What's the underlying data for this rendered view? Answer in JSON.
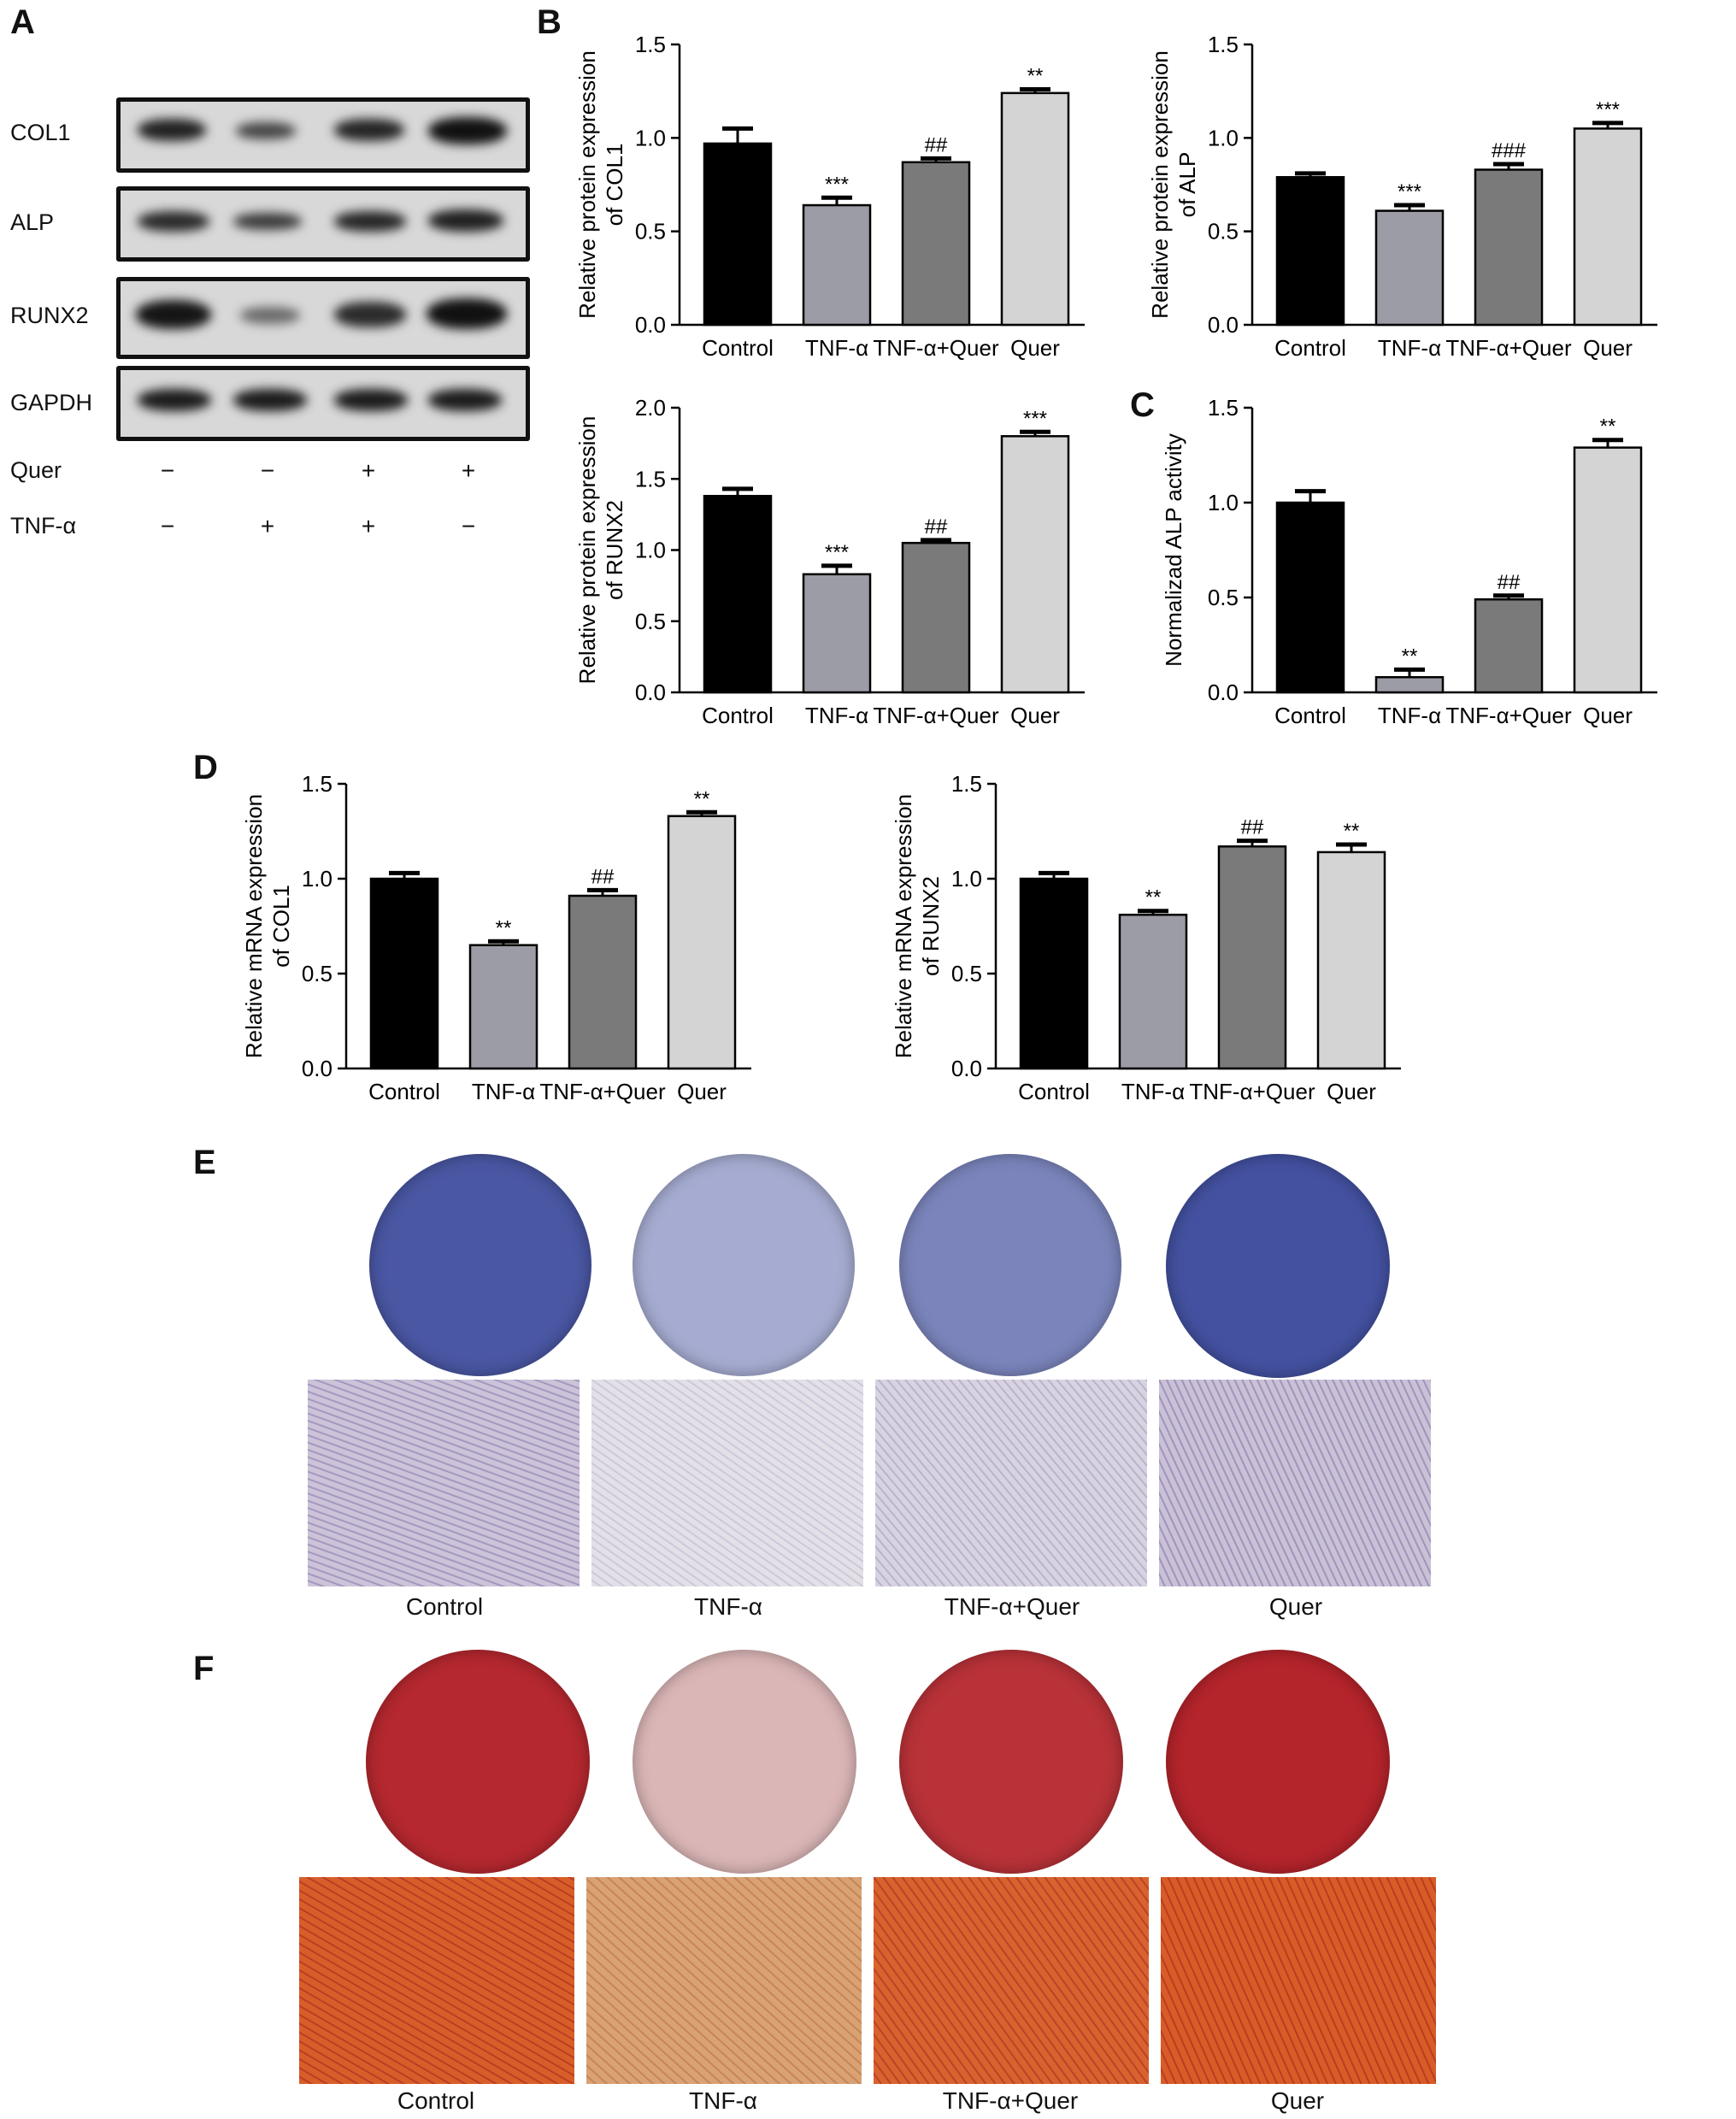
{
  "panels": {
    "A": "A",
    "B": "B",
    "C": "C",
    "D": "D",
    "E": "E",
    "F": "F"
  },
  "blot": {
    "rows": [
      "COL1",
      "ALP",
      "RUNX2",
      "GAPDH"
    ],
    "conditions": [
      {
        "label": "Quer",
        "signs": [
          "−",
          "−",
          "+",
          "+"
        ]
      },
      {
        "label": "TNF-α",
        "signs": [
          "−",
          "+",
          "+",
          "−"
        ]
      }
    ]
  },
  "chart_data": [
    {
      "type": "bar",
      "id": "col1_protein",
      "categories": [
        "Control",
        "TNF-α",
        "TNF-α+Quer",
        "Quer"
      ],
      "values": [
        0.97,
        0.64,
        0.87,
        1.24
      ],
      "errors": [
        0.08,
        0.04,
        0.02,
        0.02
      ],
      "annotations": [
        "",
        "***",
        "##",
        "**"
      ],
      "ylabel": "Relative protein expression of COL1",
      "ylim": [
        0,
        1.5
      ],
      "yticks": [
        0.0,
        0.5,
        1.0,
        1.5
      ]
    },
    {
      "type": "bar",
      "id": "alp_protein",
      "categories": [
        "Control",
        "TNF-α",
        "TNF-α+Quer",
        "Quer"
      ],
      "values": [
        0.79,
        0.61,
        0.83,
        1.05
      ],
      "errors": [
        0.02,
        0.03,
        0.03,
        0.03
      ],
      "annotations": [
        "",
        "***",
        "###",
        "***"
      ],
      "ylabel": "Relative protein expression of ALP",
      "ylim": [
        0,
        1.5
      ],
      "yticks": [
        0.0,
        0.5,
        1.0,
        1.5
      ]
    },
    {
      "type": "bar",
      "id": "runx2_protein",
      "categories": [
        "Control",
        "TNF-α",
        "TNF-α+Quer",
        "Quer"
      ],
      "values": [
        1.38,
        0.83,
        1.05,
        1.8
      ],
      "errors": [
        0.05,
        0.06,
        0.02,
        0.03
      ],
      "annotations": [
        "",
        "***",
        "##",
        "***"
      ],
      "ylabel": "Relative protein expression of RUNX2",
      "ylim": [
        0,
        2.0
      ],
      "yticks": [
        0.0,
        0.5,
        1.0,
        1.5,
        2.0
      ]
    },
    {
      "type": "bar",
      "id": "alp_activity",
      "categories": [
        "Control",
        "TNF-α",
        "TNF-α+Quer",
        "Quer"
      ],
      "values": [
        1.0,
        0.08,
        0.49,
        1.29
      ],
      "errors": [
        0.06,
        0.04,
        0.02,
        0.04
      ],
      "annotations": [
        "",
        "**",
        "##",
        "**"
      ],
      "ylabel": "Normalizad ALP activity",
      "ylim": [
        0,
        1.5
      ],
      "yticks": [
        0.0,
        0.5,
        1.0,
        1.5
      ]
    },
    {
      "type": "bar",
      "id": "col1_mrna",
      "categories": [
        "Control",
        "TNF-α",
        "TNF-α+Quer",
        "Quer"
      ],
      "values": [
        1.0,
        0.65,
        0.91,
        1.33
      ],
      "errors": [
        0.03,
        0.02,
        0.03,
        0.02
      ],
      "annotations": [
        "",
        "**",
        "##",
        "**"
      ],
      "ylabel": "Relative mRNA expression of COL1",
      "ylim": [
        0,
        1.5
      ],
      "yticks": [
        0.0,
        0.5,
        1.0,
        1.5
      ]
    },
    {
      "type": "bar",
      "id": "runx2_mrna",
      "categories": [
        "Control",
        "TNF-α",
        "TNF-α+Quer",
        "Quer"
      ],
      "values": [
        1.0,
        0.81,
        1.17,
        1.14
      ],
      "errors": [
        0.03,
        0.02,
        0.03,
        0.04
      ],
      "annotations": [
        "",
        "**",
        "##",
        "**"
      ],
      "ylabel": "Relative mRNA expression of RUNX2",
      "ylim": [
        0,
        1.5
      ],
      "yticks": [
        0.0,
        0.5,
        1.0,
        1.5
      ]
    }
  ],
  "staining": {
    "captions": [
      "Control",
      "TNF-α",
      "TNF-α+Quer",
      "Quer"
    ],
    "alp_intensity": [
      0.9,
      0.25,
      0.55,
      0.95
    ],
    "ars_intensity": [
      0.9,
      0.2,
      0.85,
      0.92
    ]
  },
  "colors": {
    "bars": [
      "#000000",
      "#9c9ca6",
      "#7a7a7a",
      "#d4d4d4"
    ],
    "alp_stain": "#3c4a9c",
    "ars_stain": "#b0141b",
    "micro_alp": "#c8bfd6",
    "micro_ars": "#d8541e"
  }
}
